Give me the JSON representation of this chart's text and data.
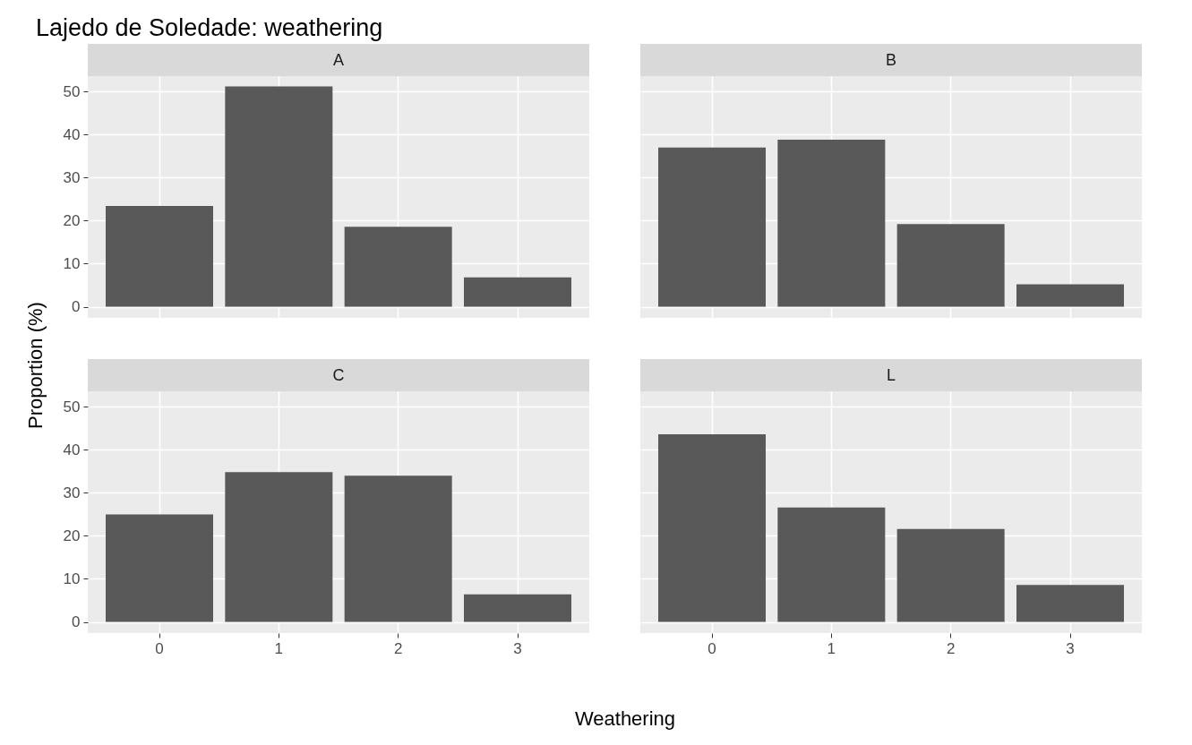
{
  "chart_data": [
    {
      "type": "bar",
      "title": "A",
      "annotations": [
        "Lajedo de Soledade: weathering"
      ],
      "ylabel": "Proportion (%)",
      "categories": [
        "0",
        "1",
        "2",
        "3"
      ],
      "values": [
        23.4,
        51.2,
        18.6,
        6.8
      ],
      "color": "#595959",
      "ylim": [
        -2.6,
        53.6
      ],
      "yticks": [
        0,
        10,
        20,
        30,
        40,
        50
      ],
      "grid": true,
      "tick_labels": "y"
    },
    {
      "type": "bar",
      "title": "B",
      "categories": [
        "0",
        "1",
        "2",
        "3"
      ],
      "values": [
        37,
        38.8,
        19.2,
        5.2
      ],
      "color": "#595959",
      "ylim": [
        -2.6,
        53.6
      ],
      "yticks": [
        0,
        10,
        20,
        30,
        40,
        50
      ],
      "grid": true,
      "tick_labels": false
    },
    {
      "type": "bar",
      "title": "C",
      "xlabel": "Weathering",
      "categories": [
        "0",
        "1",
        "2",
        "3"
      ],
      "values": [
        25,
        34.8,
        34,
        6.4
      ],
      "color": "#595959",
      "ylim": [
        -2.6,
        53.6
      ],
      "yticks": [
        0,
        10,
        20,
        30,
        40,
        50
      ],
      "grid": true
    },
    {
      "type": "bar",
      "title": "L",
      "categories": [
        "0",
        "1",
        "2",
        "3"
      ],
      "values": [
        43.6,
        26.6,
        21.6,
        8.6
      ],
      "color": "#595959",
      "ylim": [
        -2.6,
        53.6
      ],
      "yticks": [
        0,
        10,
        20,
        30,
        40,
        50
      ],
      "grid": true,
      "tick_labels": "x"
    }
  ]
}
